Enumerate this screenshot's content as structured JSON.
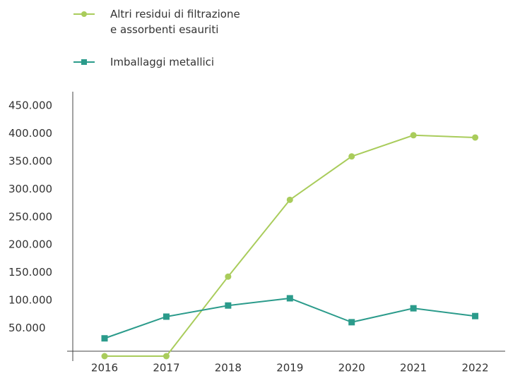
{
  "chart_data": {
    "type": "line",
    "categories": [
      "2016",
      "2017",
      "2018",
      "2019",
      "2020",
      "2021",
      "2022"
    ],
    "series": [
      {
        "name": "Altri residui di filtrazione\ne assorbenti esauriti",
        "color": "#a9cc5b",
        "marker": "circle",
        "values": [
          0,
          0,
          143000,
          281000,
          359000,
          397000,
          393000
        ]
      },
      {
        "name": "Imballaggi metallici",
        "color": "#2b9b8b",
        "marker": "square",
        "values": [
          32000,
          71000,
          91000,
          104000,
          61000,
          86000,
          72000
        ]
      }
    ],
    "ylim": [
      0,
      450000
    ],
    "yticks": [
      {
        "value": 50000,
        "label": "50.000"
      },
      {
        "value": 100000,
        "label": "100.000"
      },
      {
        "value": 150000,
        "label": "150.000"
      },
      {
        "value": 200000,
        "label": "200.000"
      },
      {
        "value": 250000,
        "label": "250.000"
      },
      {
        "value": 300000,
        "label": "300.000"
      },
      {
        "value": 350000,
        "label": "350.000"
      },
      {
        "value": 400000,
        "label": "400.000"
      },
      {
        "value": 450000,
        "label": "450.000"
      }
    ],
    "grid": false
  }
}
